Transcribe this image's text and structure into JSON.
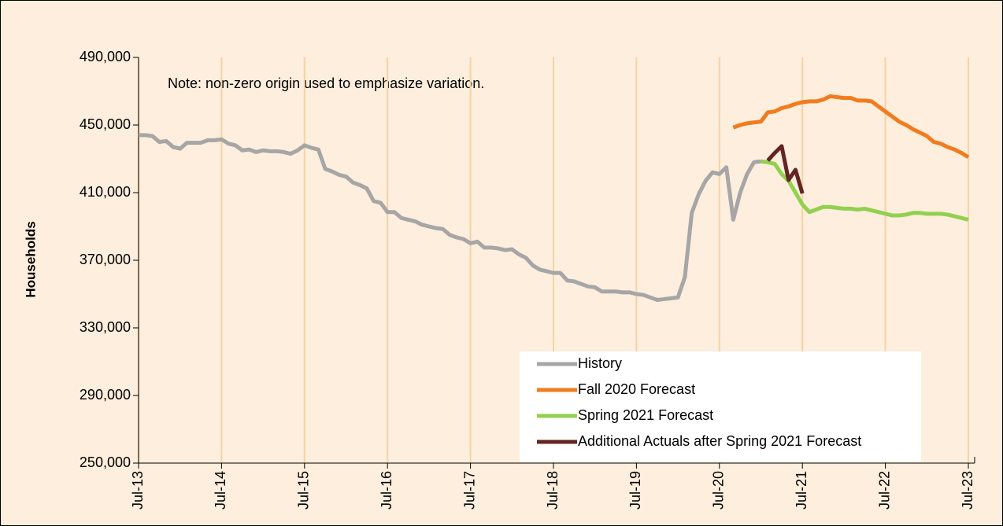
{
  "chart_data": {
    "type": "line",
    "ylabel": "Households",
    "annotation": "Note: non-zero origin used to emphasize variation.",
    "categories": [
      "Jul-13",
      null,
      null,
      null,
      null,
      null,
      null,
      null,
      null,
      null,
      null,
      null,
      "Jul-14",
      null,
      null,
      null,
      null,
      null,
      null,
      null,
      null,
      null,
      null,
      null,
      "Jul-15",
      null,
      null,
      null,
      null,
      null,
      null,
      null,
      null,
      null,
      null,
      null,
      "Jul-16",
      null,
      null,
      null,
      null,
      null,
      null,
      null,
      null,
      null,
      null,
      null,
      "Jul-17",
      null,
      null,
      null,
      null,
      null,
      null,
      null,
      null,
      null,
      null,
      null,
      "Jul-18",
      null,
      null,
      null,
      null,
      null,
      null,
      null,
      null,
      null,
      null,
      null,
      "Jul-19",
      null,
      null,
      null,
      null,
      null,
      null,
      null,
      null,
      null,
      null,
      null,
      "Jul-20",
      null,
      null,
      null,
      null,
      null,
      null,
      null,
      null,
      null,
      null,
      null,
      "Jul-21",
      null,
      null,
      null,
      null,
      null,
      null,
      null,
      null,
      null,
      null,
      null,
      "Jul-22",
      null,
      null,
      null,
      null,
      null,
      null,
      null,
      null,
      null,
      null,
      null,
      "Jul-23"
    ],
    "series": [
      {
        "name": "History",
        "color": "#a6a6a6",
        "values": [
          444000,
          444000,
          443500,
          440000,
          440500,
          437000,
          436000,
          439500,
          439500,
          439500,
          441000,
          441000,
          441500,
          439000,
          438000,
          435000,
          435500,
          434000,
          435000,
          434500,
          434500,
          434000,
          433000,
          435000,
          438000,
          436500,
          435500,
          424000,
          422500,
          420500,
          419500,
          416000,
          414500,
          412500,
          405000,
          404000,
          398500,
          398500,
          395000,
          394000,
          393000,
          391000,
          390000,
          389000,
          388500,
          385000,
          383500,
          382500,
          380000,
          381000,
          377500,
          377500,
          377000,
          376000,
          376500,
          373500,
          371500,
          367000,
          364500,
          363500,
          362500,
          362500,
          358000,
          357500,
          356000,
          354500,
          354000,
          351500,
          351500,
          351500,
          351000,
          351000,
          350000,
          349500,
          348000,
          346500,
          347000,
          347500,
          348000,
          360000,
          398000,
          409000,
          417000,
          422000,
          421000,
          425000,
          394000,
          410000,
          421000,
          428000,
          428500,
          null,
          null,
          null,
          null,
          null,
          null,
          null,
          null,
          null,
          null,
          null,
          null,
          null,
          null,
          null,
          null,
          null,
          null,
          null,
          null,
          null,
          null,
          null,
          null,
          null,
          null,
          null,
          null,
          null,
          null
        ]
      },
      {
        "name": "Fall 2020 Forecast",
        "color": "#f07c1e",
        "values": [
          null,
          null,
          null,
          null,
          null,
          null,
          null,
          null,
          null,
          null,
          null,
          null,
          null,
          null,
          null,
          null,
          null,
          null,
          null,
          null,
          null,
          null,
          null,
          null,
          null,
          null,
          null,
          null,
          null,
          null,
          null,
          null,
          null,
          null,
          null,
          null,
          null,
          null,
          null,
          null,
          null,
          null,
          null,
          null,
          null,
          null,
          null,
          null,
          null,
          null,
          null,
          null,
          null,
          null,
          null,
          null,
          null,
          null,
          null,
          null,
          null,
          null,
          null,
          null,
          null,
          null,
          null,
          null,
          null,
          null,
          null,
          null,
          null,
          null,
          null,
          null,
          null,
          null,
          null,
          null,
          null,
          null,
          null,
          null,
          null,
          null,
          448500,
          450000,
          451000,
          451500,
          452000,
          457500,
          458000,
          460000,
          461000,
          462500,
          463500,
          464000,
          464000,
          465000,
          467000,
          466500,
          466000,
          466000,
          464500,
          464500,
          464000,
          461000,
          458000,
          455000,
          452000,
          450000,
          447500,
          445500,
          443500,
          440000,
          439000,
          437000,
          435500,
          433500,
          431000
        ]
      },
      {
        "name": "Spring 2021 Forecast",
        "color": "#92d050",
        "values": [
          null,
          null,
          null,
          null,
          null,
          null,
          null,
          null,
          null,
          null,
          null,
          null,
          null,
          null,
          null,
          null,
          null,
          null,
          null,
          null,
          null,
          null,
          null,
          null,
          null,
          null,
          null,
          null,
          null,
          null,
          null,
          null,
          null,
          null,
          null,
          null,
          null,
          null,
          null,
          null,
          null,
          null,
          null,
          null,
          null,
          null,
          null,
          null,
          null,
          null,
          null,
          null,
          null,
          null,
          null,
          null,
          null,
          null,
          null,
          null,
          null,
          null,
          null,
          null,
          null,
          null,
          null,
          null,
          null,
          null,
          null,
          null,
          null,
          null,
          null,
          null,
          null,
          null,
          null,
          null,
          null,
          null,
          null,
          null,
          null,
          null,
          null,
          null,
          null,
          null,
          428500,
          428000,
          427000,
          421000,
          417000,
          410000,
          403000,
          398500,
          400000,
          401500,
          401500,
          401000,
          400500,
          400500,
          400000,
          400500,
          399500,
          398500,
          397500,
          396500,
          396500,
          397000,
          398000,
          398000,
          397500,
          397500,
          397500,
          397000,
          396000,
          395000,
          394000
        ]
      },
      {
        "name": "Additional Actuals after Spring 2021 Forecast",
        "color": "#632523",
        "values": [
          null,
          null,
          null,
          null,
          null,
          null,
          null,
          null,
          null,
          null,
          null,
          null,
          null,
          null,
          null,
          null,
          null,
          null,
          null,
          null,
          null,
          null,
          null,
          null,
          null,
          null,
          null,
          null,
          null,
          null,
          null,
          null,
          null,
          null,
          null,
          null,
          null,
          null,
          null,
          null,
          null,
          null,
          null,
          null,
          null,
          null,
          null,
          null,
          null,
          null,
          null,
          null,
          null,
          null,
          null,
          null,
          null,
          null,
          null,
          null,
          null,
          null,
          null,
          null,
          null,
          null,
          null,
          null,
          null,
          null,
          null,
          null,
          null,
          null,
          null,
          null,
          null,
          null,
          null,
          null,
          null,
          null,
          null,
          null,
          null,
          null,
          null,
          null,
          null,
          null,
          null,
          429000,
          433500,
          437500,
          417500,
          423500,
          409500,
          null,
          null,
          null,
          null,
          null,
          null,
          null,
          null,
          null,
          null,
          null,
          null,
          null,
          null,
          null,
          null,
          null,
          null,
          null,
          null,
          null,
          null,
          null,
          null
        ]
      }
    ],
    "ylim": [
      250000,
      490000
    ],
    "yticks": [
      {
        "value": 250000,
        "label": "250,000"
      },
      {
        "value": 290000,
        "label": "290,000"
      },
      {
        "value": 330000,
        "label": "330,000"
      },
      {
        "value": 370000,
        "label": "370,000"
      },
      {
        "value": 410000,
        "label": "410,000"
      },
      {
        "value": 450000,
        "label": "450,000"
      },
      {
        "value": 490000,
        "label": "490,000"
      }
    ],
    "grid": true,
    "legend": "lower right"
  }
}
